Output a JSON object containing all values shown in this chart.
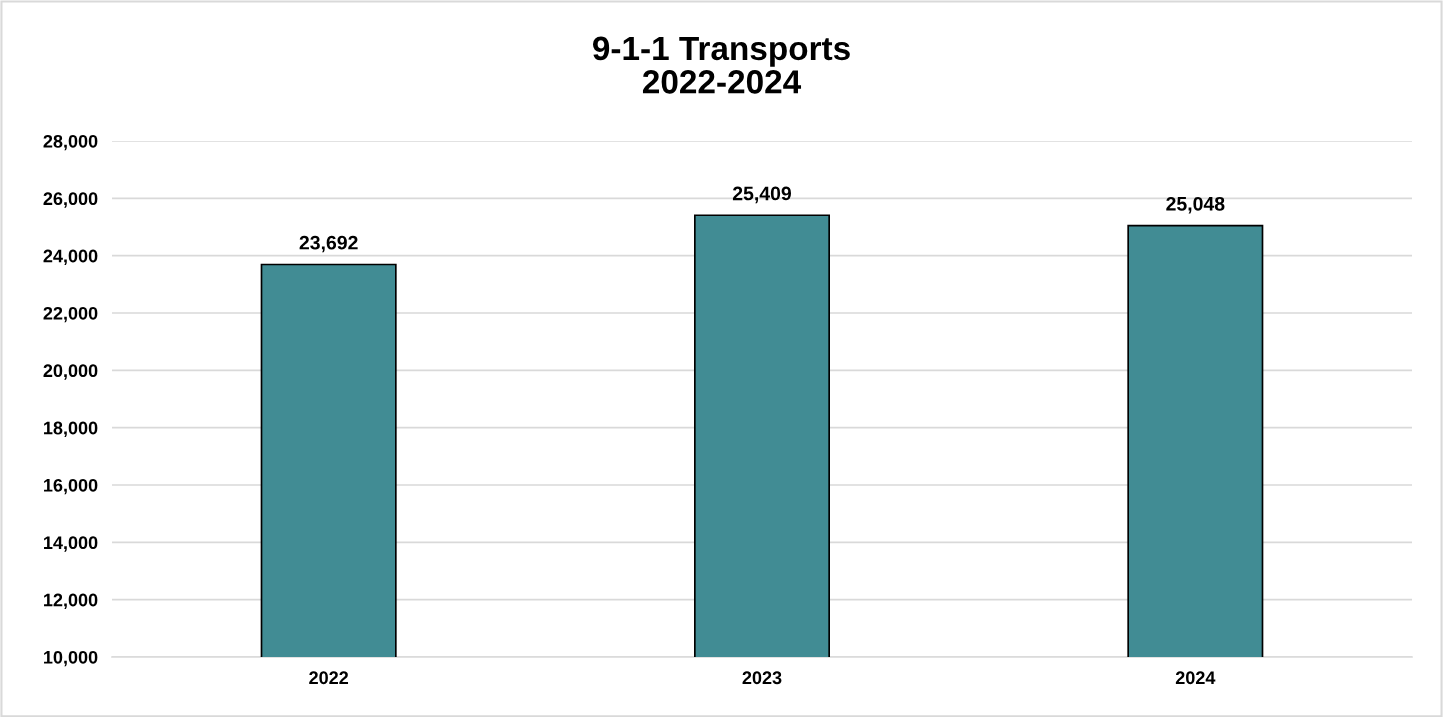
{
  "chart_data": {
    "type": "bar",
    "title": "9-1-1 Transports\n2022-2024",
    "categories": [
      "2022",
      "2023",
      "2024"
    ],
    "values": [
      23692,
      25409,
      25048
    ],
    "color": "#418c94",
    "ylim": [
      10000,
      28000
    ],
    "yticks": [
      {
        "value": 10000,
        "label": "10,000"
      },
      {
        "value": 12000,
        "label": "12,000"
      },
      {
        "value": 14000,
        "label": "14,000"
      },
      {
        "value": 16000,
        "label": "16,000"
      },
      {
        "value": 18000,
        "label": "18,000"
      },
      {
        "value": 20000,
        "label": "20,000"
      },
      {
        "value": 22000,
        "label": "22,000"
      },
      {
        "value": 24000,
        "label": "24,000"
      },
      {
        "value": 26000,
        "label": "26,000"
      },
      {
        "value": 28000,
        "label": "28,000"
      }
    ],
    "value_labels": [
      "23,692",
      "25,409",
      "25,048"
    ],
    "grid": "y"
  }
}
